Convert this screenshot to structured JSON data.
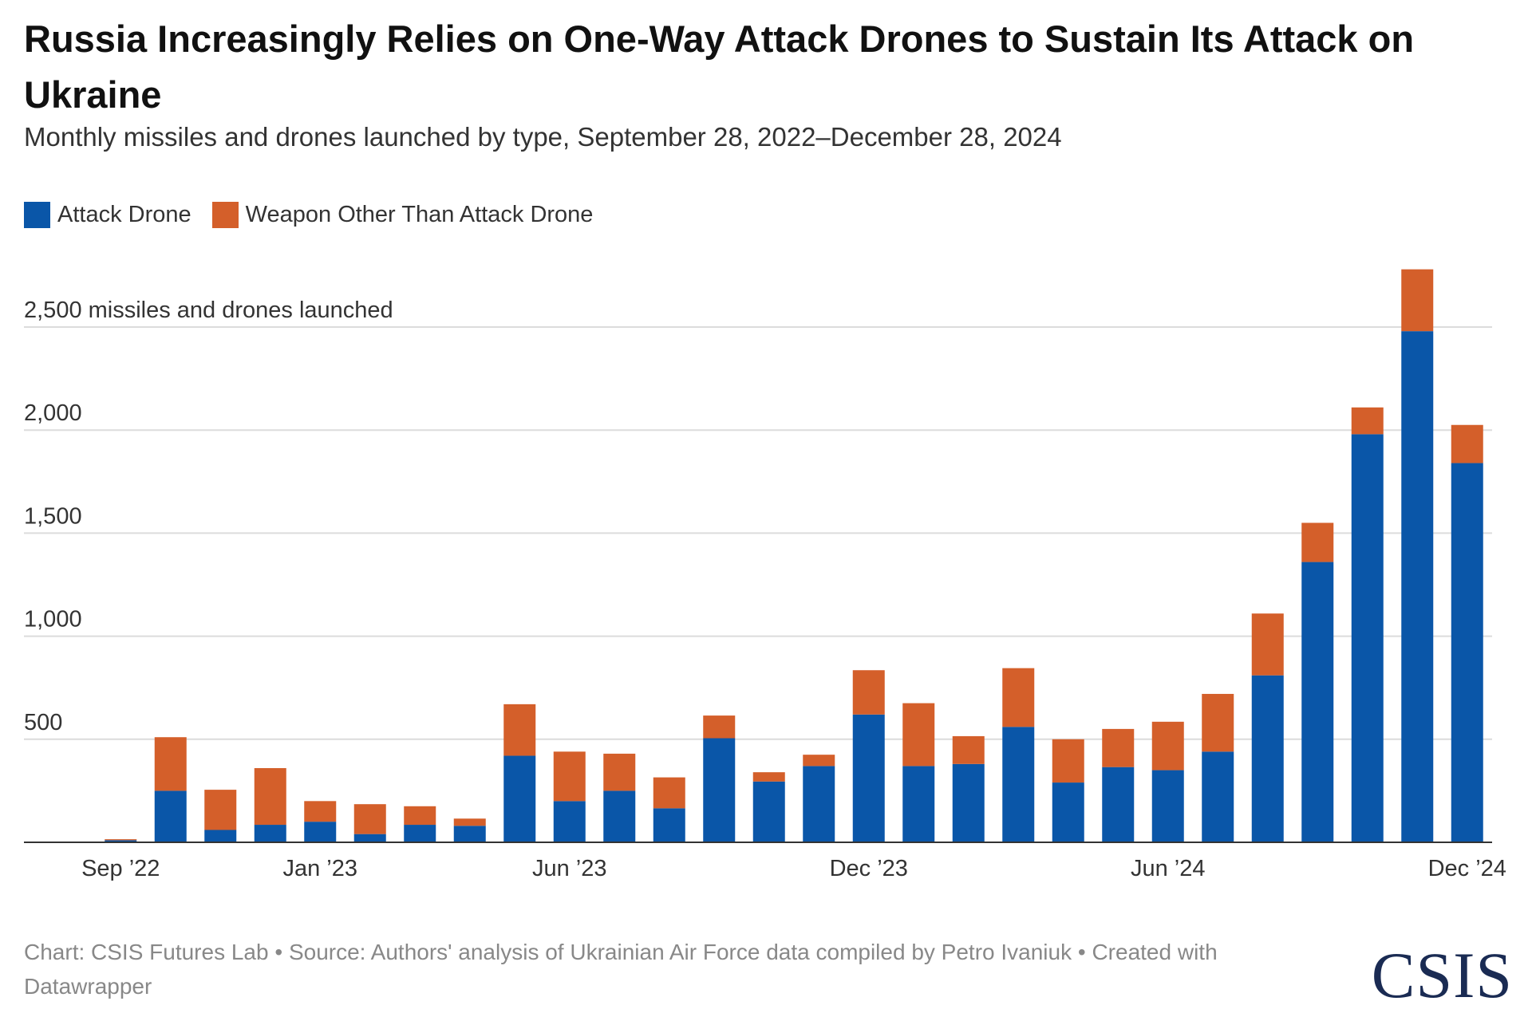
{
  "title": "Russia Increasingly Relies on One-Way Attack Drones to Sustain Its Attack on Ukraine",
  "subtitle": "Monthly missiles and drones launched by type, September 28, 2022–December 28, 2024",
  "colors": {
    "attack_drone": "#0a56a8",
    "other_weapon": "#d45f2a",
    "grid": "#dcdcdc",
    "axis": "#333333"
  },
  "legend": {
    "attack_drone": "Attack Drone",
    "other_weapon": "Weapon Other Than Attack Drone"
  },
  "footer": "Chart: CSIS Futures Lab • Source: Authors' analysis of Ukrainian Air Force data compiled by Petro Ivaniuk • Created with Datawrapper",
  "logo": "CSIS",
  "chart_data": {
    "type": "bar",
    "stacked": true,
    "title": "Russia Increasingly Relies on One-Way Attack Drones to Sustain Its Attack on Ukraine",
    "subtitle": "Monthly missiles and drones launched by type, September 28, 2022–December 28, 2024",
    "ylabel": "2,500 missiles and drones launched",
    "ylim": [
      0,
      2800
    ],
    "yticks": [
      500,
      1000,
      1500,
      2000,
      2500
    ],
    "ytick_labels": [
      "500",
      "1,000",
      "1,500",
      "2,000",
      "2,500 missiles and drones launched"
    ],
    "grid": true,
    "legend_position": "top-left",
    "categories": [
      "Sep 2022",
      "Oct 2022",
      "Nov 2022",
      "Dec 2022",
      "Jan 2023",
      "Feb 2023",
      "Mar 2023",
      "Apr 2023",
      "May 2023",
      "Jun 2023",
      "Jul 2023",
      "Aug 2023",
      "Sep 2023",
      "Oct 2023",
      "Nov 2023",
      "Dec 2023",
      "Jan 2024",
      "Feb 2024",
      "Mar 2024",
      "Apr 2024",
      "May 2024",
      "Jun 2024",
      "Jul 2024",
      "Aug 2024",
      "Sep 2024",
      "Oct 2024",
      "Nov 2024",
      "Dec 2024"
    ],
    "x_tick_labels": [
      {
        "index": 0,
        "label": "Sep ’22"
      },
      {
        "index": 4,
        "label": "Jan ’23"
      },
      {
        "index": 9,
        "label": "Jun ’23"
      },
      {
        "index": 15,
        "label": "Dec ’23"
      },
      {
        "index": 21,
        "label": "Jun ’24"
      },
      {
        "index": 27,
        "label": "Dec ’24"
      }
    ],
    "series": [
      {
        "name": "Attack Drone",
        "values": [
          10,
          250,
          60,
          85,
          100,
          40,
          85,
          80,
          420,
          200,
          250,
          165,
          505,
          295,
          370,
          620,
          370,
          380,
          560,
          290,
          365,
          350,
          440,
          810,
          1360,
          1980,
          2480,
          1840
        ]
      },
      {
        "name": "Weapon Other Than Attack Drone",
        "values": [
          5,
          260,
          195,
          275,
          100,
          145,
          90,
          35,
          250,
          240,
          180,
          150,
          110,
          45,
          55,
          215,
          305,
          135,
          285,
          210,
          185,
          235,
          280,
          300,
          190,
          130,
          300,
          185
        ]
      }
    ]
  }
}
